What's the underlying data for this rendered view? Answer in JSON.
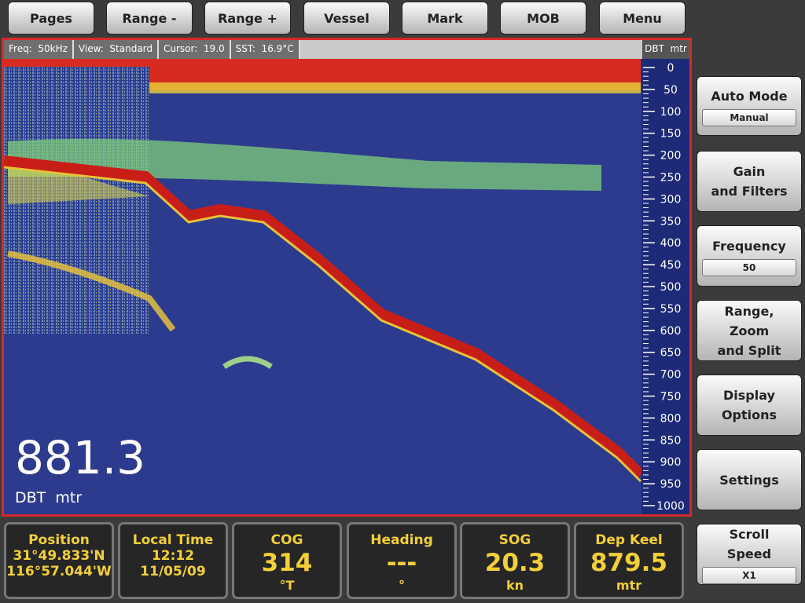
{
  "toolbar": {
    "buttons": [
      "Pages",
      "Range -",
      "Range +",
      "Vessel",
      "Mark",
      "MOB",
      "Menu"
    ]
  },
  "status_bar": {
    "items": [
      "Freq:  50kHz",
      "View:  Standard",
      "Cursor:  19.0",
      "SST:  16.9°C"
    ],
    "depth_unit": "DBT  mtr"
  },
  "depth_scale": {
    "labels": [
      0,
      50,
      100,
      150,
      200,
      250,
      300,
      350,
      400,
      450,
      500,
      550,
      600,
      650,
      700,
      750,
      800,
      850,
      900,
      950,
      1000
    ]
  },
  "readout": {
    "value": "881.3",
    "unit": "DBT  mtr"
  },
  "side_buttons": [
    {
      "lines": [
        "Auto Mode"
      ],
      "setting": "Manual"
    },
    {
      "lines": [
        "Gain",
        "and Filters"
      ]
    },
    {
      "lines": [
        "Frequency"
      ],
      "setting": "50"
    },
    {
      "lines": [
        "Range,",
        "Zoom",
        "and Split"
      ]
    },
    {
      "lines": [
        "Display",
        "Options"
      ]
    },
    {
      "lines": [
        "Settings"
      ]
    },
    {
      "lines": [
        "Scroll",
        "Speed"
      ],
      "setting": "X1"
    }
  ],
  "data_boxes": [
    {
      "title": "Position",
      "lines": [
        "31°49.833'N",
        "116°57.044'W"
      ]
    },
    {
      "title": "Local Time",
      "lines": [
        "12:12",
        "11/05/09"
      ]
    },
    {
      "title": "COG",
      "value": "314",
      "unit": "°T"
    },
    {
      "title": "Heading",
      "value": "---",
      "unit": "°"
    },
    {
      "title": "SOG",
      "value": "20.3",
      "unit": "kn"
    },
    {
      "title": "Dep Keel",
      "value": "879.5",
      "unit": "mtr"
    }
  ]
}
